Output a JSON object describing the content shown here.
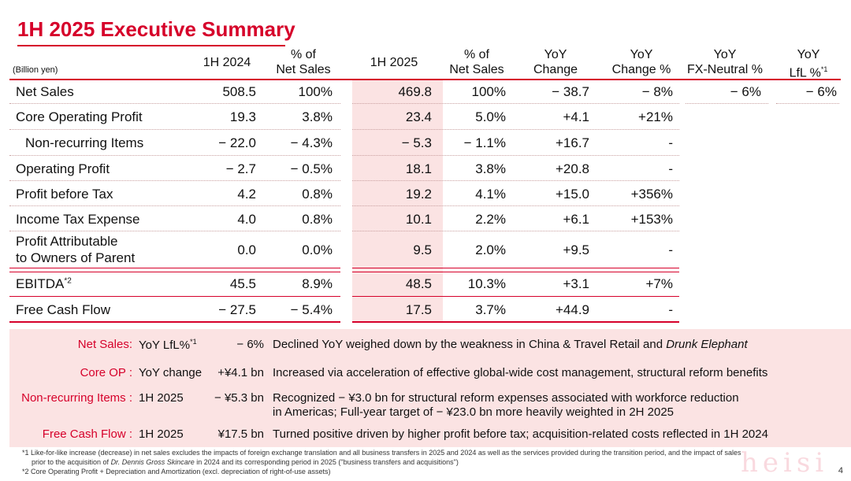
{
  "title": "1H 2025 Executive Summary",
  "unit_label": "(Billion yen)",
  "headers": {
    "h2024": "1H 2024",
    "pct1_a": "% of",
    "pct1_b": "Net Sales",
    "h2025": "1H 2025",
    "pct2_a": "% of",
    "pct2_b": "Net Sales",
    "yoy_a": "YoY",
    "yoy_b": "Change",
    "yoyp_a": "YoY",
    "yoyp_b": "Change %",
    "fx_a": "YoY",
    "fx_b": "FX-Neutral %",
    "lfl_a": "YoY",
    "lfl_b": "LfL %",
    "lfl_sup": "*1"
  },
  "rows": [
    {
      "label": "Net Sales",
      "v2024": "508.5",
      "p2024": "100%",
      "v2025": "469.8",
      "p2025": "100%",
      "yoy": "− 38.7",
      "yoyp": "− 8%",
      "fx": "− 6%",
      "lfl": "− 6%"
    },
    {
      "label": "Core Operating Profit",
      "v2024": "19.3",
      "p2024": "3.8%",
      "v2025": "23.4",
      "p2025": "5.0%",
      "yoy": "+4.1",
      "yoyp": "+21%",
      "fx": "",
      "lfl": ""
    },
    {
      "label": "Non-recurring Items",
      "v2024": "− 22.0",
      "p2024": "− 4.3%",
      "v2025": "− 5.3",
      "p2025": "− 1.1%",
      "yoy": "+16.7",
      "yoyp": "-",
      "fx": "",
      "lfl": ""
    },
    {
      "label": "Operating Profit",
      "v2024": "− 2.7",
      "p2024": "− 0.5%",
      "v2025": "18.1",
      "p2025": "3.8%",
      "yoy": "+20.8",
      "yoyp": "-",
      "fx": "",
      "lfl": ""
    },
    {
      "label": "Profit before Tax",
      "v2024": "4.2",
      "p2024": "0.8%",
      "v2025": "19.2",
      "p2025": "4.1%",
      "yoy": "+15.0",
      "yoyp": "+356%",
      "fx": "",
      "lfl": ""
    },
    {
      "label": "Income Tax Expense",
      "v2024": "4.0",
      "p2024": "0.8%",
      "v2025": "10.1",
      "p2025": "2.2%",
      "yoy": "+6.1",
      "yoyp": "+153%",
      "fx": "",
      "lfl": ""
    },
    {
      "label": "Profit Attributable",
      "label2": "to Owners of Parent",
      "v2024": "0.0",
      "p2024": "0.0%",
      "v2025": "9.5",
      "p2025": "2.0%",
      "yoy": "+9.5",
      "yoyp": "-",
      "fx": "",
      "lfl": ""
    },
    {
      "label": "EBITDA",
      "sup": "*2",
      "v2024": "45.5",
      "p2024": "8.9%",
      "v2025": "48.5",
      "p2025": "10.3%",
      "yoy": "+3.1",
      "yoyp": "+7%",
      "fx": "",
      "lfl": ""
    },
    {
      "label": "Free Cash Flow",
      "v2024": "− 27.5",
      "p2024": "− 5.4%",
      "v2025": "17.5",
      "p2025": "3.7%",
      "yoy": "+44.9",
      "yoyp": "-",
      "fx": "",
      "lfl": ""
    }
  ],
  "notes": [
    {
      "key": "Net Sales:",
      "metric": "YoY LfL%",
      "metric_sup": "*1",
      "value": "− 6%",
      "text": "Declined YoY weighed down by the weakness in China & Travel Retail and ",
      "text_italic": "Drunk Elephant"
    },
    {
      "key": "Core OP :",
      "metric": "YoY change",
      "value": "+¥4.1 bn",
      "text": "Increased via acceleration of effective global-wide cost management, structural reform benefits"
    },
    {
      "key": "Non-recurring Items :",
      "metric": "1H 2025",
      "value": "− ¥5.3 bn",
      "text": "Recognized  − ¥3.0 bn for structural reform expenses associated with workforce reduction",
      "text2": "in Americas; Full-year target of  − ¥23.0 bn more heavily weighted in 2H 2025"
    },
    {
      "key": "Free Cash Flow :",
      "metric": "1H 2025",
      "value": "¥17.5 bn",
      "text": "Turned positive driven by higher profit before tax; acquisition-related costs reflected in 1H 2024"
    }
  ],
  "footnotes": {
    "f1a": "*1 Like-for-like increase (decrease) in net sales excludes the impacts of foreign exchange translation and all business transfers in 2025 and 2024 as well as the services provided during the transition period, and the impact of sales",
    "f1b_pre": "prior to the acquisition of ",
    "f1b_italic": "Dr. Dennis Gross Skincare",
    "f1b_post": " in 2024 and its corresponding period in 2025 (\"business transfers and acquisitions\")",
    "f2": "*2 Core Operating Profit + Depreciation and Amortization (excl. depreciation of right-of-use assets)"
  },
  "page_number": "4",
  "watermark": "heisi",
  "colors": {
    "accent": "#d6002a",
    "highlight": "#fbe3e3"
  }
}
